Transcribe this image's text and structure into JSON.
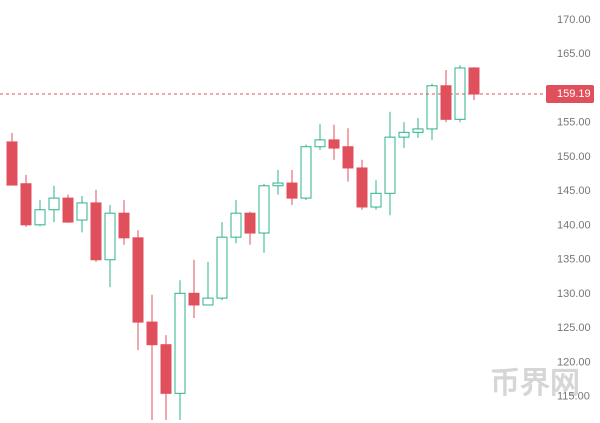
{
  "chart_data": {
    "type": "candlestick",
    "up_color": "#2bb38d",
    "down_color": "#e0505c",
    "ylim": [
      111.17,
      172.92
    ],
    "yticks": [
      {
        "value": 115,
        "label": "115.00"
      },
      {
        "value": 120,
        "label": "120.00"
      },
      {
        "value": 125,
        "label": "125.00"
      },
      {
        "value": 130,
        "label": "130.00"
      },
      {
        "value": 135,
        "label": "135.00"
      },
      {
        "value": 140,
        "label": "140.00"
      },
      {
        "value": 145,
        "label": "145.00"
      },
      {
        "value": 150,
        "label": "150.00"
      },
      {
        "value": 155,
        "label": "155.00"
      },
      {
        "value": 165,
        "label": "165.00"
      },
      {
        "value": 170,
        "label": "170.00"
      }
    ],
    "last_price": 159.19,
    "watermark": "币界网",
    "open": [
      152.2,
      146.1,
      140.1,
      142.3,
      144.0,
      140.8,
      143.3,
      135.0,
      141.8,
      138.2,
      125.9,
      122.6,
      115.5,
      130.1,
      128.4,
      129.4,
      138.3,
      141.8,
      138.9,
      145.8,
      146.2,
      144.0,
      151.5,
      152.5,
      151.5,
      148.4,
      142.7,
      144.7,
      152.9,
      153.6,
      154.1,
      160.4,
      155.5,
      163.0
    ],
    "high": [
      153.5,
      147.4,
      143.7,
      145.8,
      144.5,
      144.3,
      145.2,
      143.0,
      143.7,
      139.3,
      129.9,
      124.0,
      132.0,
      135.0,
      134.7,
      140.5,
      143.7,
      142.0,
      146.1,
      148.1,
      148.1,
      151.8,
      154.8,
      154.7,
      154.2,
      149.6,
      146.6,
      156.6,
      155.1,
      155.7,
      160.7,
      162.7,
      163.4,
      163.1
    ],
    "low": [
      145.9,
      139.8,
      139.9,
      140.5,
      140.4,
      139.0,
      134.7,
      131.0,
      137.2,
      121.8,
      111.6,
      111.6,
      111.6,
      126.5,
      128.4,
      129.1,
      137.4,
      137.2,
      136.0,
      144.5,
      143.0,
      143.7,
      151.0,
      149.6,
      146.4,
      142.3,
      142.3,
      141.5,
      151.3,
      152.8,
      152.5,
      155.1,
      155.1,
      158.3
    ],
    "close": [
      145.9,
      140.1,
      142.3,
      144.0,
      140.5,
      143.3,
      135.0,
      141.8,
      138.2,
      125.9,
      122.6,
      115.5,
      130.1,
      128.4,
      129.4,
      138.3,
      141.8,
      138.9,
      145.8,
      146.2,
      144.0,
      151.5,
      152.5,
      151.3,
      148.4,
      142.7,
      144.7,
      152.9,
      153.6,
      154.1,
      160.4,
      155.5,
      163.0,
      159.19
    ]
  }
}
